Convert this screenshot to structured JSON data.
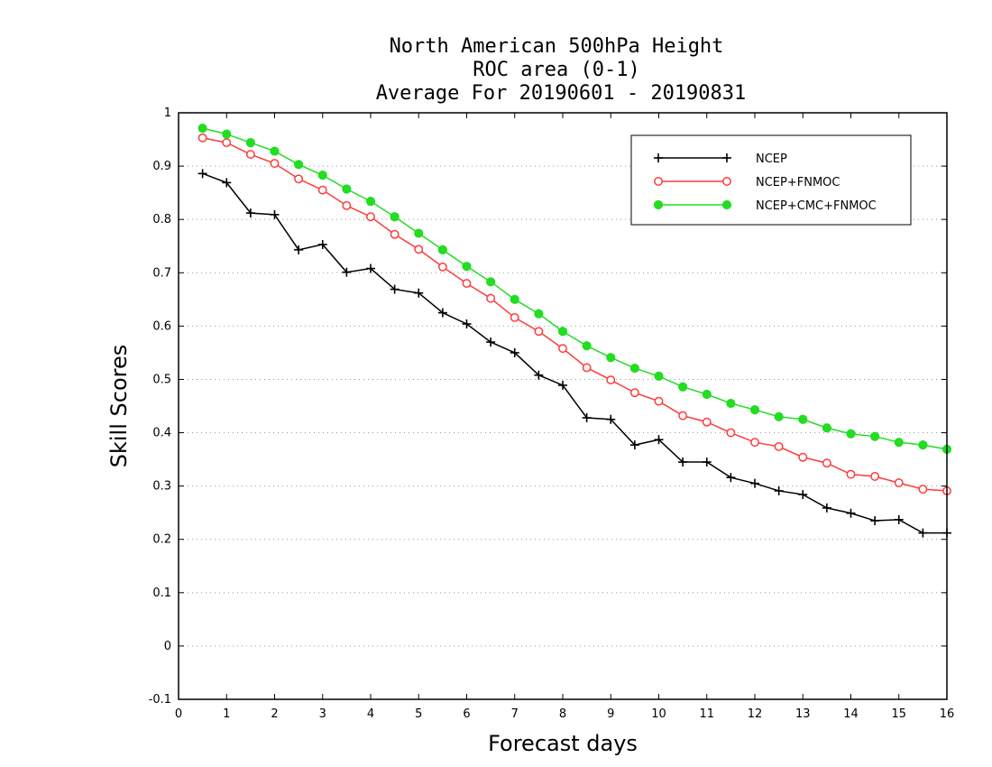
{
  "chart_data": {
    "type": "line",
    "title_lines": [
      "North American 500hPa Height",
      "ROC area (0-1)",
      "Average For 20190601 - 20190831"
    ],
    "xlabel": "Forecast days",
    "ylabel": "Skill Scores",
    "xlim": [
      0,
      16
    ],
    "ylim": [
      -0.1,
      1
    ],
    "x_ticks": [
      0,
      1,
      2,
      3,
      4,
      5,
      6,
      7,
      8,
      9,
      10,
      11,
      12,
      13,
      14,
      15,
      16
    ],
    "y_ticks": [
      -0.1,
      0,
      0.1,
      0.2,
      0.3,
      0.4,
      0.5,
      0.6,
      0.7,
      0.8,
      0.9,
      1
    ],
    "y_tick_labels": [
      "-0.1",
      "0",
      "0.1",
      "0.2",
      "0.3",
      "0.4",
      "0.5",
      "0.6",
      "0.7",
      "0.8",
      "0.9",
      "1"
    ],
    "grid": "horizontal dotted",
    "legend_position": "top-right",
    "x": [
      0.5,
      1,
      1.5,
      2,
      2.5,
      3,
      3.5,
      4,
      4.5,
      5,
      5.5,
      6,
      6.5,
      7,
      7.5,
      8,
      8.5,
      9,
      9.5,
      10,
      10.5,
      11,
      11.5,
      12,
      12.5,
      13,
      13.5,
      14,
      14.5,
      15,
      15.5,
      16
    ],
    "series": [
      {
        "name": "NCEP",
        "color": "#000000",
        "marker": "plus",
        "values": [
          0.886,
          0.869,
          0.812,
          0.809,
          0.743,
          0.753,
          0.701,
          0.708,
          0.669,
          0.662,
          0.625,
          0.604,
          0.57,
          0.55,
          0.508,
          0.489,
          0.428,
          0.425,
          0.377,
          0.387,
          0.345,
          0.345,
          0.316,
          0.305,
          0.291,
          0.284,
          0.259,
          0.249,
          0.235,
          0.237,
          0.212,
          0.212
        ]
      },
      {
        "name": "NCEP+FNMOC",
        "color": "#ff3b3b",
        "marker": "open-circle",
        "values": [
          0.953,
          0.944,
          0.922,
          0.905,
          0.876,
          0.855,
          0.826,
          0.805,
          0.772,
          0.744,
          0.711,
          0.68,
          0.652,
          0.616,
          0.59,
          0.558,
          0.522,
          0.499,
          0.475,
          0.459,
          0.432,
          0.42,
          0.4,
          0.382,
          0.374,
          0.354,
          0.343,
          0.322,
          0.318,
          0.306,
          0.294,
          0.291
        ]
      },
      {
        "name": "NCEP+CMC+FNMOC",
        "color": "#22dd22",
        "marker": "filled-circle",
        "values": [
          0.971,
          0.96,
          0.944,
          0.928,
          0.903,
          0.883,
          0.857,
          0.834,
          0.805,
          0.774,
          0.743,
          0.712,
          0.683,
          0.65,
          0.623,
          0.59,
          0.563,
          0.541,
          0.521,
          0.506,
          0.486,
          0.472,
          0.455,
          0.443,
          0.43,
          0.425,
          0.409,
          0.398,
          0.393,
          0.382,
          0.377,
          0.369
        ]
      }
    ]
  }
}
